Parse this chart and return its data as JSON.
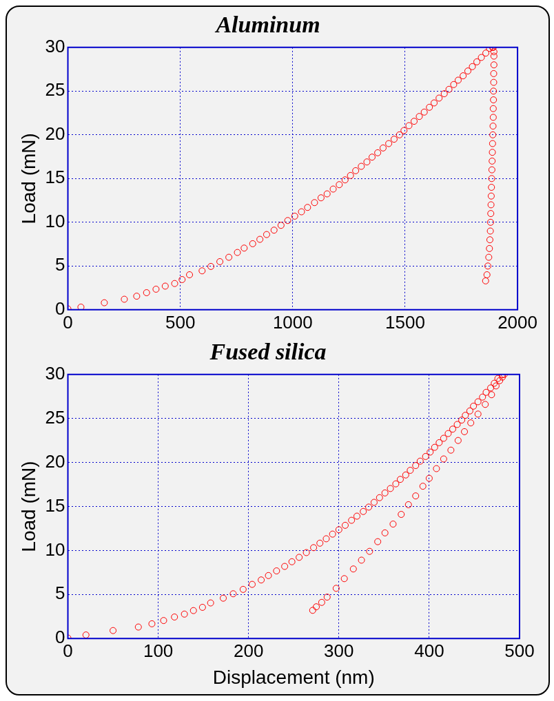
{
  "chart_data": [
    {
      "type": "scatter",
      "title": "Aluminum",
      "ylabel": "Load (mN)",
      "xlim": [
        0,
        2000
      ],
      "ylim": [
        0,
        30
      ],
      "xticks": [
        0,
        500,
        1000,
        1500,
        2000
      ],
      "yticks": [
        0,
        5,
        10,
        15,
        20,
        25,
        30
      ],
      "grid": true,
      "marker": "circle",
      "series": [
        {
          "color": "#ff0000",
          "x": [
            0,
            58,
            162,
            251,
            306,
            350,
            392,
            433,
            475,
            508,
            541,
            597,
            636,
            676,
            716,
            754,
            784,
            822,
            854,
            884,
            917,
            948,
            978,
            1009,
            1039,
            1066,
            1097,
            1126,
            1153,
            1180,
            1207,
            1233,
            1257,
            1280,
            1305,
            1330,
            1353,
            1378,
            1402,
            1427,
            1451,
            1475,
            1495,
            1517,
            1540,
            1563,
            1585,
            1608,
            1629,
            1651,
            1674,
            1695,
            1716,
            1736,
            1758,
            1779,
            1799,
            1819,
            1839,
            1859,
            1875,
            1889,
            1892,
            1895,
            1895,
            1895,
            1894,
            1894,
            1893,
            1893,
            1892,
            1892,
            1891,
            1890,
            1889,
            1888,
            1887,
            1886,
            1885,
            1884,
            1883,
            1882,
            1881,
            1880,
            1879,
            1877,
            1875,
            1872,
            1868,
            1864,
            1858
          ],
          "values": [
            0.1,
            0.3,
            0.8,
            1.2,
            1.55,
            1.95,
            2.35,
            2.7,
            3.0,
            3.45,
            4.0,
            4.45,
            4.95,
            5.5,
            6.0,
            6.55,
            7.05,
            7.55,
            8.05,
            8.6,
            9.1,
            9.65,
            10.2,
            10.7,
            11.2,
            11.7,
            12.25,
            12.8,
            13.25,
            13.8,
            14.3,
            14.85,
            15.35,
            15.9,
            16.4,
            16.9,
            17.45,
            17.95,
            18.5,
            19.0,
            19.5,
            20.0,
            20.5,
            21.05,
            21.55,
            22.1,
            22.6,
            23.15,
            23.65,
            24.2,
            24.7,
            25.2,
            25.75,
            26.25,
            26.75,
            27.3,
            27.8,
            28.35,
            28.85,
            29.35,
            29.9,
            30.0,
            30,
            29.5,
            29,
            28,
            27,
            26,
            25,
            24,
            23,
            22,
            21,
            20,
            19,
            18,
            17,
            16,
            15,
            14,
            13,
            12,
            11,
            10,
            9,
            8,
            7,
            6,
            5,
            4,
            3.3
          ]
        }
      ]
    },
    {
      "type": "scatter",
      "title": "Fused silica",
      "xlabel": "Displacement (nm)",
      "ylabel": "Load (mN)",
      "xlim": [
        0,
        500
      ],
      "ylim": [
        0,
        30
      ],
      "xticks": [
        0,
        100,
        200,
        300,
        400,
        500
      ],
      "yticks": [
        0,
        5,
        10,
        15,
        20,
        25,
        30
      ],
      "grid": true,
      "marker": "circle",
      "series": [
        {
          "color": "#ff0000",
          "x": [
            0,
            20,
            50,
            78,
            93,
            106,
            118,
            129,
            139,
            149,
            158,
            172,
            183,
            194,
            204,
            214,
            222,
            231,
            240,
            248,
            256,
            264,
            272,
            279,
            286,
            293,
            300,
            307,
            314,
            320,
            327,
            333,
            339,
            345,
            351,
            357,
            363,
            368,
            374,
            379,
            385,
            390,
            396,
            401,
            406,
            411,
            416,
            421,
            426,
            431,
            436,
            440,
            445,
            449,
            454,
            459,
            463,
            468,
            472,
            476,
            481,
            483,
            481,
            478,
            474,
            469,
            462,
            454,
            446,
            439,
            432,
            424,
            416,
            408,
            400,
            393,
            385,
            377,
            369,
            360,
            351,
            343,
            334,
            325,
            316,
            306,
            297,
            287,
            281,
            275,
            271
          ],
          "values": [
            0.05,
            0.4,
            0.9,
            1.3,
            1.67,
            2.04,
            2.44,
            2.77,
            3.17,
            3.54,
            4.04,
            4.58,
            5.08,
            5.58,
            6.15,
            6.65,
            7.15,
            7.68,
            8.19,
            8.72,
            9.22,
            9.76,
            10.32,
            10.83,
            11.33,
            11.86,
            12.36,
            12.86,
            13.43,
            13.9,
            14.43,
            14.93,
            15.47,
            16.0,
            16.54,
            17.04,
            17.57,
            18.08,
            18.58,
            19.11,
            19.65,
            20.15,
            20.68,
            21.18,
            21.72,
            22.25,
            22.75,
            23.29,
            23.79,
            24.32,
            24.82,
            25.36,
            25.86,
            26.4,
            26.9,
            27.43,
            27.97,
            28.47,
            29.0,
            29.54,
            29.97,
            30.0,
            29.7,
            29.3,
            28.7,
            27.7,
            26.6,
            25.5,
            24.5,
            23.5,
            22.5,
            21.4,
            20.4,
            19.3,
            18.2,
            17.3,
            16.2,
            15.2,
            14.1,
            13.0,
            12.0,
            11.0,
            9.9,
            8.9,
            7.9,
            6.8,
            5.7,
            4.7,
            4.1,
            3.6,
            3.2
          ]
        }
      ]
    }
  ]
}
